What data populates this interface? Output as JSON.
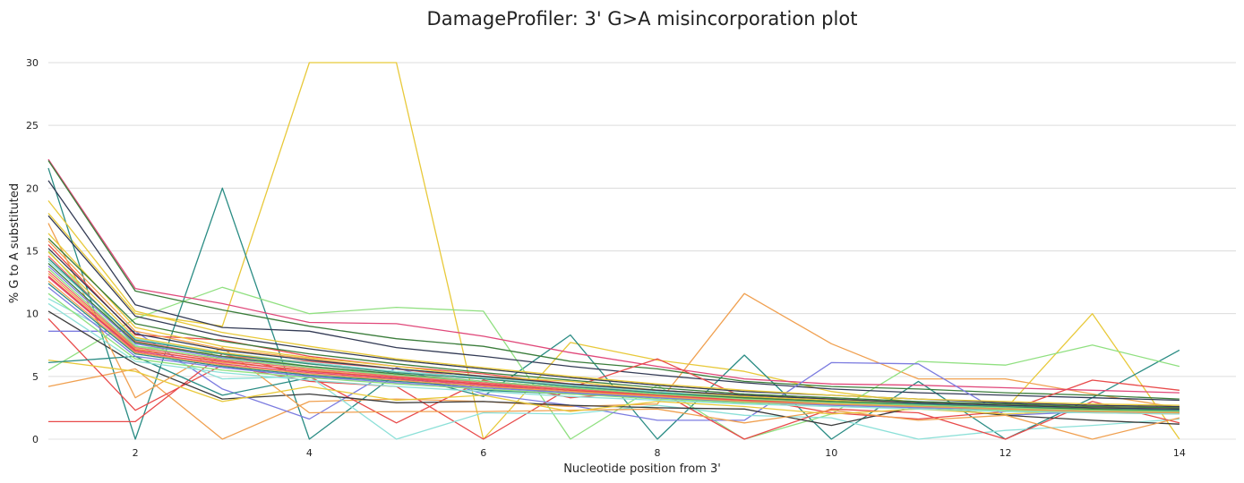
{
  "chart_data": {
    "type": "line",
    "title": "DamageProfiler: 3' G>A misincorporation plot",
    "xlabel": "Nucleotide position from 3'",
    "ylabel": "% G to A substituted",
    "xlim": [
      1,
      14.65
    ],
    "ylim": [
      0,
      30
    ],
    "x": [
      1,
      2,
      3,
      4,
      5,
      6,
      7,
      8,
      9,
      10,
      11,
      12,
      13,
      14
    ],
    "xticks": [
      "2",
      "4",
      "6",
      "8",
      "10",
      "12",
      "14"
    ],
    "xtick_values": [
      2,
      4,
      6,
      8,
      10,
      12,
      14
    ],
    "yticks": [
      "0",
      "5",
      "10",
      "15",
      "20",
      "25",
      "30"
    ],
    "ytick_values": [
      0,
      5,
      10,
      15,
      20,
      25,
      30
    ],
    "grid": "horizontal",
    "legend": "none",
    "series": [
      {
        "color": "#e8c93a",
        "values": [
          18.0,
          10.0,
          9.0,
          30.0,
          30.0,
          0.0,
          7.7,
          6.3,
          5.4,
          3.8,
          2.9,
          2.4,
          10.0,
          0.0
        ]
      },
      {
        "color": "#2a8c84",
        "values": [
          21.6,
          0.0,
          20.0,
          0.0,
          5.2,
          3.4,
          8.3,
          0.0,
          6.7,
          0.0,
          4.6,
          0.0,
          3.3,
          7.1
        ]
      },
      {
        "color": "#f0a050",
        "values": [
          4.2,
          5.6,
          0.0,
          3.0,
          3.2,
          3.0,
          2.6,
          2.8,
          11.6,
          7.6,
          4.8,
          4.8,
          3.6,
          2.5
        ]
      },
      {
        "color": "#90e080",
        "values": [
          5.5,
          9.6,
          12.1,
          10.0,
          10.5,
          10.2,
          0.0,
          4.3,
          0.0,
          2.0,
          6.2,
          5.9,
          7.5,
          5.8
        ]
      },
      {
        "color": "#e0487a",
        "values": [
          22.3,
          12.0,
          10.8,
          9.3,
          9.2,
          8.2,
          6.9,
          5.8,
          4.8,
          4.4,
          4.3,
          4.1,
          3.9,
          3.7
        ]
      },
      {
        "color": "#3b7d3b",
        "values": [
          22.2,
          11.8,
          10.3,
          9.0,
          8.0,
          7.4,
          6.2,
          5.6,
          4.6,
          4.2,
          4.0,
          3.7,
          3.5,
          3.2
        ]
      },
      {
        "color": "#333b55",
        "values": [
          20.6,
          10.7,
          8.9,
          8.6,
          7.3,
          6.6,
          5.8,
          5.1,
          4.5,
          4.0,
          3.7,
          3.5,
          3.3,
          3.1
        ]
      },
      {
        "color": "#e84a4a",
        "values": [
          9.6,
          2.3,
          5.9,
          4.6,
          4.2,
          0.0,
          4.1,
          6.4,
          3.3,
          2.1,
          1.6,
          2.2,
          4.7,
          3.9
        ]
      },
      {
        "color": "#7c7ce0",
        "values": [
          8.6,
          8.6,
          4.0,
          1.6,
          5.7,
          3.6,
          2.7,
          1.5,
          1.5,
          6.1,
          6.0,
          1.9,
          2.2,
          2.6
        ]
      },
      {
        "color": "#8ce0d8",
        "values": [
          11.2,
          7.5,
          4.8,
          5.0,
          0.0,
          2.1,
          2.0,
          2.7,
          1.9,
          1.7,
          0.0,
          0.7,
          1.1,
          1.6
        ]
      },
      {
        "color": "#e84a4a",
        "values": [
          1.4,
          1.4,
          6.8,
          5.0,
          1.3,
          4.7,
          3.3,
          3.9,
          0.0,
          2.4,
          2.1,
          0.0,
          3.0,
          1.3
        ]
      },
      {
        "color": "#3b3b3b",
        "values": [
          10.2,
          6.0,
          3.2,
          3.6,
          2.9,
          3.0,
          2.7,
          2.5,
          2.4,
          1.1,
          2.6,
          1.9,
          1.5,
          1.2
        ]
      },
      {
        "color": "#f0a050",
        "values": [
          17.2,
          3.3,
          7.3,
          2.1,
          2.2,
          2.2,
          2.3,
          2.4,
          1.3,
          2.3,
          1.5,
          1.9,
          0.0,
          1.7
        ]
      },
      {
        "color": "#e8c93a",
        "values": [
          6.3,
          5.4,
          3.0,
          4.2,
          3.1,
          3.5,
          2.2,
          3.0,
          2.6,
          2.0,
          2.4,
          2.0,
          2.3,
          2.2
        ]
      },
      {
        "color": "#2a8c84",
        "values": [
          6.1,
          6.6,
          3.5,
          4.9,
          4.8,
          3.9,
          3.6,
          3.3,
          2.9,
          2.8,
          2.6,
          2.4,
          2.3,
          2.2
        ]
      },
      {
        "color": "#90e080",
        "values": [
          15.0,
          7.4,
          6.8,
          5.8,
          5.0,
          4.6,
          4.0,
          3.6,
          3.1,
          2.8,
          2.6,
          2.4,
          2.2,
          2.1
        ]
      },
      {
        "color": "#f06a6a",
        "values": [
          14.6,
          7.8,
          6.6,
          6.2,
          5.6,
          4.8,
          4.3,
          3.7,
          3.4,
          3.0,
          2.7,
          2.4,
          2.3,
          2.1
        ]
      },
      {
        "color": "#e84a4a",
        "values": [
          15.5,
          8.3,
          7.9,
          6.6,
          5.8,
          5.2,
          4.4,
          3.9,
          3.5,
          3.2,
          2.9,
          2.7,
          2.6,
          2.5
        ]
      },
      {
        "color": "#f0a050",
        "values": [
          13.2,
          7.2,
          6.1,
          5.5,
          4.9,
          4.4,
          3.9,
          3.4,
          3.0,
          2.8,
          2.5,
          2.3,
          2.1,
          2.0
        ]
      },
      {
        "color": "#e8c93a",
        "values": [
          16.4,
          8.9,
          7.4,
          6.5,
          5.8,
          5.0,
          4.6,
          3.9,
          3.4,
          3.1,
          2.8,
          2.6,
          2.4,
          2.3
        ]
      },
      {
        "color": "#2a8c84",
        "values": [
          12.4,
          6.8,
          5.8,
          5.1,
          4.6,
          4.2,
          3.7,
          3.3,
          3.0,
          2.8,
          2.6,
          2.4,
          2.2,
          2.1
        ]
      },
      {
        "color": "#7c7ce0",
        "values": [
          13.8,
          7.6,
          6.5,
          5.8,
          5.1,
          4.6,
          4.1,
          3.6,
          3.2,
          2.9,
          2.7,
          2.5,
          2.3,
          2.2
        ]
      },
      {
        "color": "#8ce0d8",
        "values": [
          14.2,
          8.0,
          6.9,
          6.1,
          5.4,
          4.9,
          4.3,
          3.8,
          3.3,
          3.0,
          2.8,
          2.6,
          2.4,
          2.3
        ]
      },
      {
        "color": "#3b7d3b",
        "values": [
          16.0,
          9.2,
          7.8,
          6.8,
          6.0,
          5.3,
          4.7,
          4.1,
          3.6,
          3.3,
          3.0,
          2.8,
          2.6,
          2.5
        ]
      },
      {
        "color": "#333b55",
        "values": [
          17.8,
          9.8,
          8.2,
          7.2,
          6.3,
          5.6,
          4.9,
          4.3,
          3.8,
          3.5,
          3.2,
          2.9,
          2.7,
          2.6
        ]
      },
      {
        "color": "#e0487a",
        "values": [
          12.9,
          7.0,
          6.0,
          5.3,
          4.8,
          4.3,
          3.8,
          3.4,
          3.1,
          2.8,
          2.6,
          2.4,
          2.3,
          2.2
        ]
      },
      {
        "color": "#90e080",
        "values": [
          11.6,
          6.4,
          5.5,
          4.9,
          4.4,
          4.0,
          3.6,
          3.2,
          2.9,
          2.7,
          2.5,
          2.3,
          2.2,
          2.1
        ]
      },
      {
        "color": "#f0a050",
        "values": [
          15.8,
          8.6,
          7.2,
          6.4,
          5.6,
          5.0,
          4.4,
          3.9,
          3.5,
          3.2,
          2.9,
          2.7,
          2.5,
          2.4
        ]
      },
      {
        "color": "#e8c93a",
        "values": [
          14.9,
          8.1,
          6.9,
          6.0,
          5.3,
          4.8,
          4.2,
          3.7,
          3.3,
          3.0,
          2.8,
          2.6,
          2.4,
          2.3
        ]
      },
      {
        "color": "#f06a6a",
        "values": [
          13.4,
          7.3,
          6.3,
          5.6,
          5.0,
          4.5,
          4.0,
          3.5,
          3.2,
          2.9,
          2.7,
          2.5,
          2.3,
          2.2
        ]
      },
      {
        "color": "#2a8c84",
        "values": [
          14.4,
          7.9,
          6.8,
          6.0,
          5.3,
          4.8,
          4.2,
          3.7,
          3.3,
          3.0,
          2.8,
          2.6,
          2.4,
          2.3
        ]
      },
      {
        "color": "#7c7ce0",
        "values": [
          12.1,
          6.6,
          5.7,
          5.0,
          4.5,
          4.1,
          3.7,
          3.3,
          3.0,
          2.7,
          2.5,
          2.4,
          2.2,
          2.1
        ]
      },
      {
        "color": "#333b55",
        "values": [
          15.2,
          8.4,
          7.1,
          6.3,
          5.6,
          5.0,
          4.4,
          3.9,
          3.5,
          3.2,
          2.9,
          2.7,
          2.5,
          2.4
        ]
      },
      {
        "color": "#8ce0d8",
        "values": [
          10.8,
          6.2,
          5.3,
          4.7,
          4.2,
          3.8,
          3.4,
          3.1,
          2.8,
          2.6,
          2.4,
          2.2,
          2.1,
          2.0
        ]
      },
      {
        "color": "#e84a4a",
        "values": [
          13.0,
          7.1,
          6.2,
          5.4,
          4.9,
          4.4,
          3.9,
          3.5,
          3.1,
          2.9,
          2.6,
          2.5,
          2.3,
          2.2
        ]
      },
      {
        "color": "#3b7d3b",
        "values": [
          14.0,
          7.7,
          6.6,
          5.8,
          5.2,
          4.6,
          4.1,
          3.6,
          3.3,
          3.0,
          2.7,
          2.5,
          2.4,
          2.2
        ]
      },
      {
        "color": "#e8c93a",
        "values": [
          19.0,
          10.2,
          8.5,
          7.4,
          6.4,
          5.7,
          5.0,
          4.4,
          3.9,
          3.5,
          3.2,
          3.0,
          2.8,
          2.7
        ]
      },
      {
        "color": "#90e080",
        "values": [
          13.6,
          7.4,
          6.4,
          5.7,
          5.1,
          4.6,
          4.1,
          3.6,
          3.2,
          2.9,
          2.7,
          2.5,
          2.3,
          2.2
        ]
      },
      {
        "color": "#f0a050",
        "values": [
          12.6,
          6.9,
          5.9,
          5.2,
          4.7,
          4.2,
          3.8,
          3.4,
          3.0,
          2.8,
          2.6,
          2.4,
          2.2,
          2.1
        ]
      }
    ]
  }
}
